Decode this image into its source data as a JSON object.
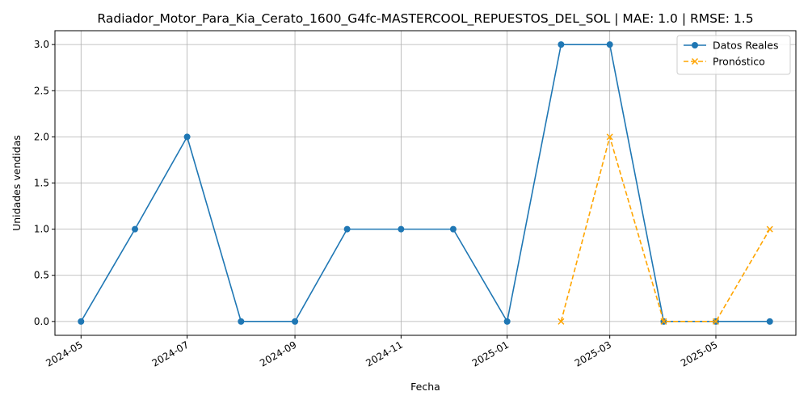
{
  "chart_data": {
    "type": "line",
    "title": "Radiador_Motor_Para_Kia_Cerato_1600_G4fc-MASTERCOOL_REPUESTOS_DEL_SOL | MAE: 1.0 | RMSE: 1.5",
    "xlabel": "Fecha",
    "ylabel": "Unidades vendidas",
    "ylim": [
      -0.15,
      3.15
    ],
    "xlim": [
      "2024-04-16",
      "2025-06-16"
    ],
    "grid": true,
    "legend_position": "top-right",
    "yticks": [
      0.0,
      0.5,
      1.0,
      1.5,
      2.0,
      2.5,
      3.0
    ],
    "ytick_labels": [
      "0.0",
      "0.5",
      "1.0",
      "1.5",
      "2.0",
      "2.5",
      "3.0"
    ],
    "xticks": [
      "2024-05-01",
      "2024-07-01",
      "2024-09-01",
      "2024-11-01",
      "2025-01-01",
      "2025-03-01",
      "2025-05-01"
    ],
    "xtick_labels": [
      "2024-05",
      "2024-07",
      "2024-09",
      "2024-11",
      "2025-01",
      "2025-03",
      "2025-05"
    ],
    "series": [
      {
        "name": "Datos Reales",
        "color": "#1f77b4",
        "linestyle": "solid",
        "marker": "circle",
        "x": [
          "2024-05-01",
          "2024-06-01",
          "2024-07-01",
          "2024-08-01",
          "2024-09-01",
          "2024-10-01",
          "2024-11-01",
          "2024-12-01",
          "2025-01-01",
          "2025-02-01",
          "2025-03-01",
          "2025-04-01",
          "2025-05-01",
          "2025-06-01"
        ],
        "values": [
          0,
          1,
          2,
          0,
          0,
          1,
          1,
          1,
          0,
          3,
          3,
          0,
          0,
          0
        ]
      },
      {
        "name": "Pronóstico",
        "color": "#ffa500",
        "linestyle": "dashed",
        "marker": "x",
        "x": [
          "2025-02-01",
          "2025-03-01",
          "2025-04-01",
          "2025-05-01",
          "2025-06-01"
        ],
        "values": [
          0,
          2,
          0,
          0,
          1
        ]
      }
    ]
  }
}
